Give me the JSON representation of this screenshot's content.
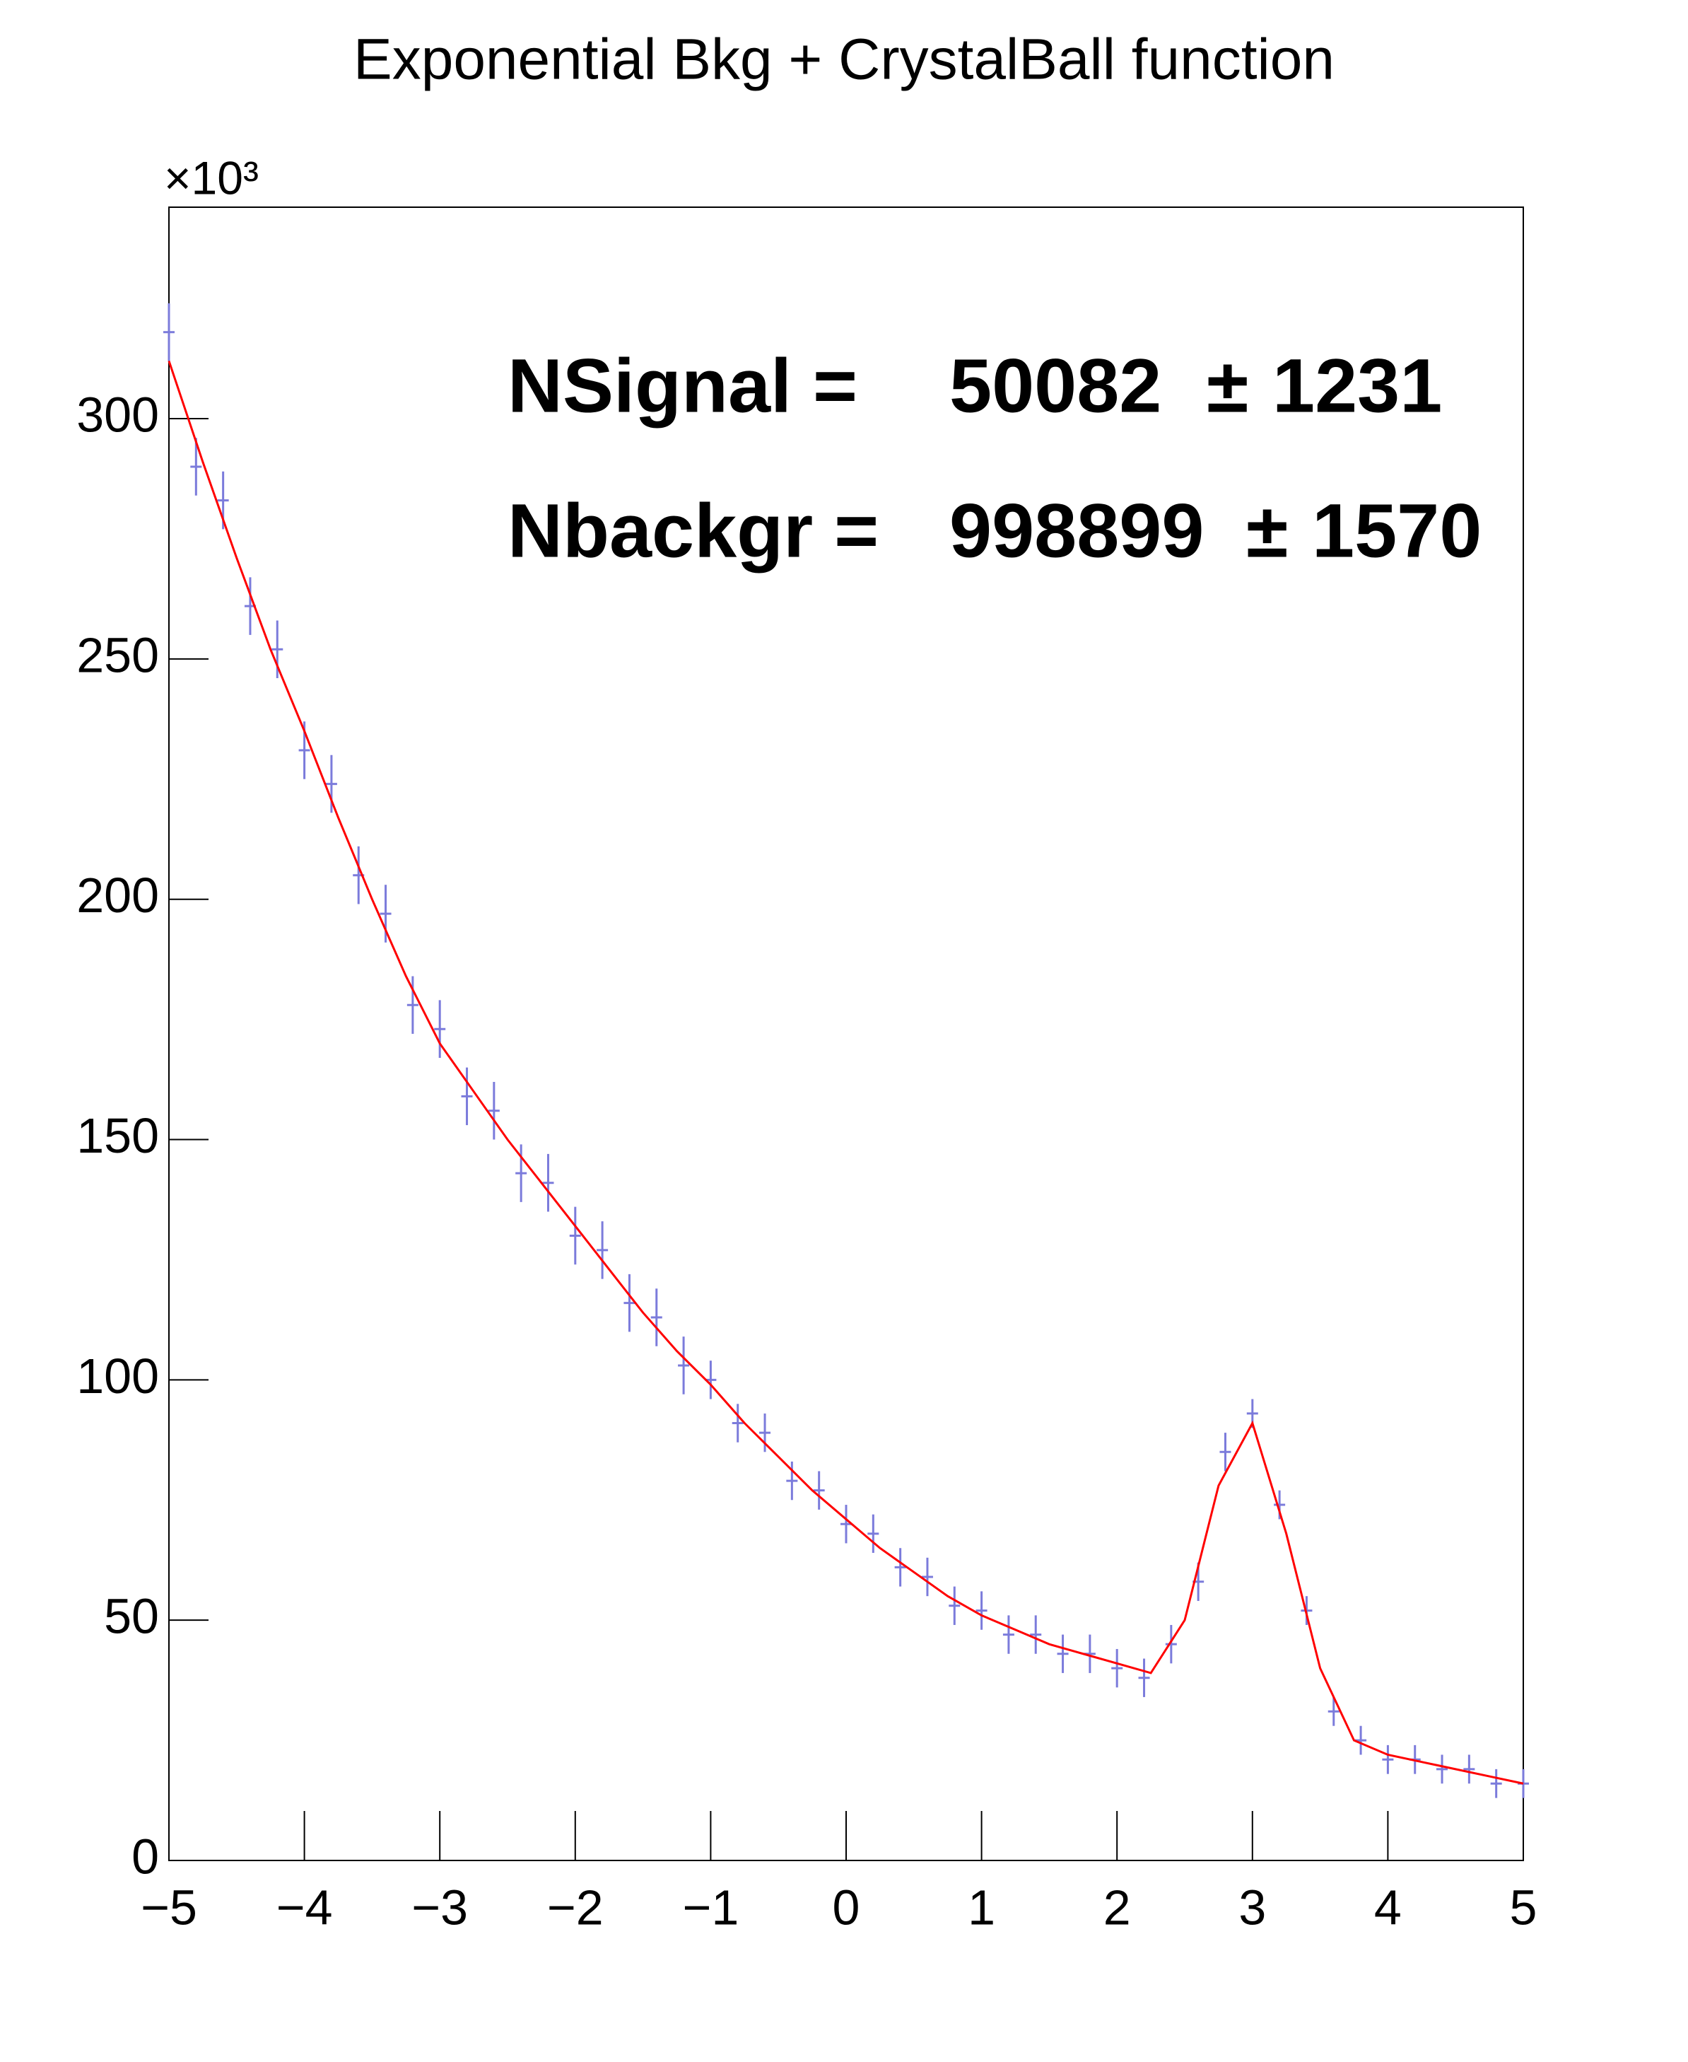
{
  "chart_data": {
    "type": "histfit",
    "title": "Exponential Bkg + CrystalBall function",
    "y_multiplier": "×10³",
    "xlim": [
      -5,
      5
    ],
    "ylim": [
      0,
      344
    ],
    "xticks": [
      {
        "value": -5,
        "label": "−5"
      },
      {
        "value": -4,
        "label": "−4"
      },
      {
        "value": -3,
        "label": "−3"
      },
      {
        "value": -2,
        "label": "−2"
      },
      {
        "value": -1,
        "label": "−1"
      },
      0,
      1,
      2,
      3,
      4,
      5
    ],
    "yticks": [
      0,
      50,
      100,
      150,
      200,
      250,
      300
    ],
    "histogram": {
      "color": "#7b7bdb",
      "x": [
        -5,
        -4.8,
        -4.6,
        -4.4,
        -4.2,
        -4,
        -3.8,
        -3.6,
        -3.4,
        -3.2,
        -3,
        -2.8,
        -2.6,
        -2.4,
        -2.2,
        -2,
        -1.8,
        -1.6,
        -1.4,
        -1.2,
        -1,
        -0.8,
        -0.6,
        -0.4,
        -0.2,
        0,
        0.2,
        0.4,
        0.6,
        0.8,
        1,
        1.2,
        1.4,
        1.6,
        1.8,
        2,
        2.2,
        2.4,
        2.6,
        2.8,
        3,
        3.2,
        3.4,
        3.6,
        3.8,
        4,
        4.2,
        4.4,
        4.6,
        4.8,
        5
      ],
      "values": [
        318,
        290,
        283,
        261,
        252,
        231,
        224,
        205,
        197,
        178,
        173,
        159,
        156,
        143,
        141,
        130,
        127,
        116,
        113,
        103,
        100,
        91,
        89,
        79,
        77,
        70,
        68,
        61,
        59,
        53,
        52,
        47,
        47,
        43,
        43,
        40,
        38,
        45,
        58,
        85,
        93,
        74,
        52,
        31,
        25,
        21,
        21,
        19,
        19,
        16,
        16
      ],
      "errors": [
        6,
        6,
        6,
        6,
        6,
        6,
        6,
        6,
        6,
        6,
        6,
        6,
        6,
        6,
        6,
        6,
        6,
        6,
        6,
        6,
        4,
        4,
        4,
        4,
        4,
        4,
        4,
        4,
        4,
        4,
        4,
        4,
        4,
        4,
        4,
        4,
        4,
        4,
        4,
        4,
        3,
        3,
        3,
        3,
        3,
        3,
        3,
        3,
        3,
        3,
        3
      ]
    },
    "fit": {
      "color": "#ff0000",
      "x": [
        -5,
        -4.75,
        -4.5,
        -4.25,
        -4,
        -3.75,
        -3.5,
        -3.25,
        -3,
        -2.75,
        -2.5,
        -2.25,
        -2,
        -1.75,
        -1.5,
        -1.25,
        -1,
        -0.75,
        -0.5,
        -0.25,
        0,
        0.25,
        0.5,
        0.75,
        1,
        1.25,
        1.5,
        1.75,
        2,
        2.25,
        2.5,
        2.75,
        3,
        3.25,
        3.5,
        3.75,
        4,
        4.25,
        4.5,
        4.75,
        5
      ],
      "values": [
        312,
        291,
        271,
        252,
        235,
        217,
        200,
        184,
        170,
        160,
        150,
        141,
        132,
        123,
        114,
        106,
        99,
        91,
        84,
        77,
        71,
        65,
        60,
        55,
        51,
        48,
        45,
        43,
        41,
        39,
        50,
        78,
        91,
        68,
        40,
        25,
        22,
        20.5,
        19,
        17.5,
        16
      ]
    },
    "annotations": [
      {
        "label": "NSignal =",
        "value": 50082,
        "pm": "±",
        "error": 1231
      },
      {
        "label": "Nbackgr =",
        "value": 998899,
        "pm": "±",
        "error": 1570
      }
    ]
  }
}
